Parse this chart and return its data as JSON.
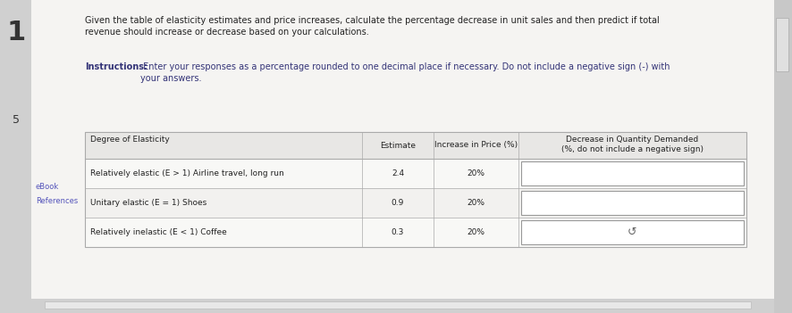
{
  "outer_bg": "#b8b8b8",
  "page_bg": "#f0efee",
  "left_strip_color": "#c8c8c8",
  "right_scrollbar_color": "#c0c0c0",
  "title_text": "Given the table of elasticity estimates and price increases, calculate the percentage decrease in unit sales and then predict if total\nrevenue should increase or decrease based on your calculations.",
  "instructions_label": "Instructions:",
  "instructions_text": " Enter your responses as a percentage rounded to one decimal place if necessary. Do not include a negative sign (-) with\nyour answers.",
  "number_1": "1",
  "number_5": "5",
  "left_label_1": "eBook",
  "left_label_2": "References",
  "col_headers": [
    "Degree of Elasticity",
    "Estimate",
    "Increase in Price (%)",
    "Decrease in Quantity Demanded\n(%, do not include a negative sign)"
  ],
  "rows": [
    [
      "Relatively elastic (E > 1) Airline travel, long run",
      "2.4",
      "20%"
    ],
    [
      "Unitary elastic (E = 1) Shoes",
      "0.9",
      "20%"
    ],
    [
      "Relatively inelastic (E < 1) Coffee",
      "0.3",
      "20%"
    ]
  ],
  "last_row_arrow": "↺",
  "title_fontsize": 7.0,
  "instructions_fontsize": 7.0,
  "table_fontsize": 6.5,
  "header_fontsize": 6.5
}
